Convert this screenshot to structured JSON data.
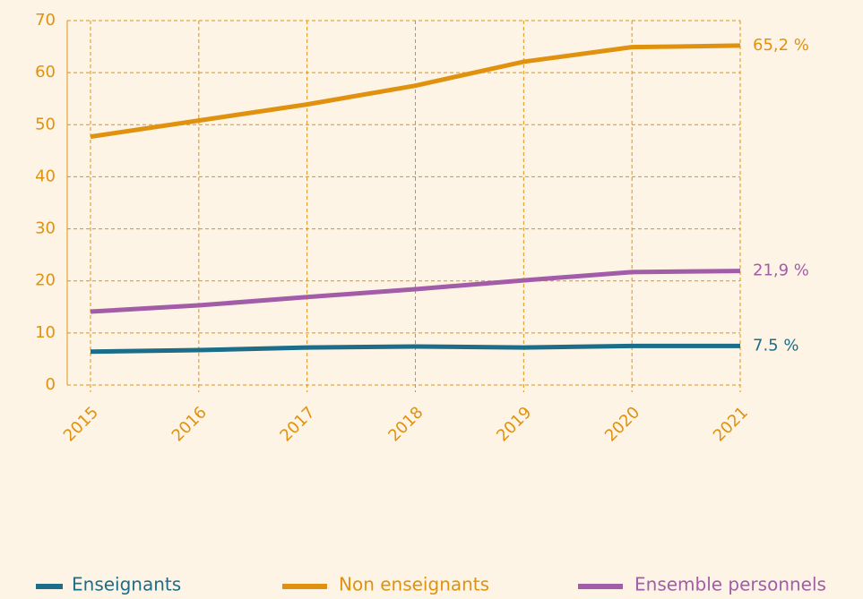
{
  "chart_data": {
    "type": "line",
    "categories": [
      "2015",
      "2016",
      "2017",
      "2018",
      "2019",
      "2020",
      "2021"
    ],
    "series": [
      {
        "name": "Enseignants",
        "color": "#1b6d89",
        "values": [
          6.4,
          6.7,
          7.2,
          7.4,
          7.2,
          7.5,
          7.5
        ],
        "value_labels": [
          null,
          null,
          null,
          null,
          null,
          null,
          "7.5 %"
        ]
      },
      {
        "name": "Non enseignants",
        "color": "#e0920e",
        "values": [
          47.7,
          50.8,
          53.9,
          57.5,
          62.1,
          64.9,
          65.2
        ],
        "value_labels": [
          null,
          null,
          null,
          null,
          null,
          null,
          "65,2 %"
        ]
      },
      {
        "name": "Ensemble personnels",
        "color": "#a35ca8",
        "values": [
          14.1,
          15.3,
          16.9,
          18.4,
          20.1,
          21.7,
          21.9
        ],
        "value_labels": [
          null,
          null,
          null,
          null,
          null,
          null,
          "21,9 %"
        ]
      }
    ],
    "ylim": [
      0,
      70
    ],
    "yticks": [
      0,
      10,
      20,
      30,
      40,
      50,
      60,
      70
    ],
    "grid": true,
    "axis_color": "#e0920e",
    "legend": "bottom"
  }
}
